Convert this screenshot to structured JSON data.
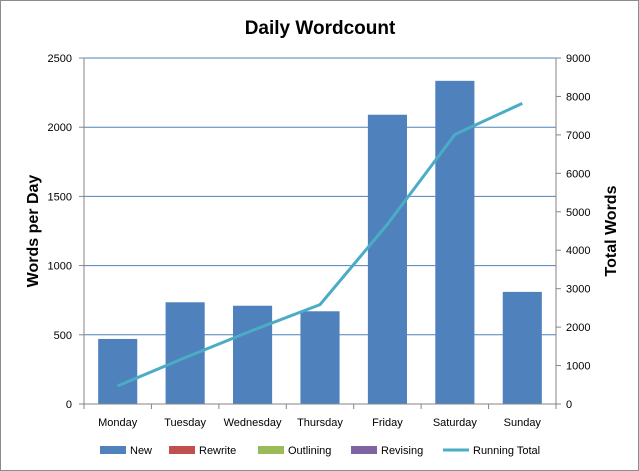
{
  "chart_data": {
    "type": "bar",
    "title": "Daily Wordcount",
    "ylabel": "Words per Day",
    "y2label": "Total Words",
    "xlabel": "",
    "categories": [
      "Monday",
      "Tuesday",
      "Wednesday",
      "Thursday",
      "Friday",
      "Saturday",
      "Sunday"
    ],
    "ylim": [
      0,
      2500
    ],
    "yticks": [
      0,
      500,
      1000,
      1500,
      2000,
      2500
    ],
    "y2lim": [
      0,
      9000
    ],
    "y2ticks": [
      0,
      1000,
      2000,
      3000,
      4000,
      5000,
      6000,
      7000,
      8000,
      9000
    ],
    "grid": true,
    "legend_position": "bottom",
    "series": [
      {
        "name": "New",
        "type": "bar",
        "axis": "left",
        "color": "#4f81bd",
        "values": [
          470,
          735,
          710,
          670,
          2090,
          2335,
          810
        ]
      },
      {
        "name": "Rewrite",
        "type": "bar",
        "axis": "left",
        "color": "#c0504d",
        "values": [
          0,
          0,
          0,
          0,
          0,
          0,
          0
        ]
      },
      {
        "name": "Outlining",
        "type": "bar",
        "axis": "left",
        "color": "#9bbb59",
        "values": [
          0,
          0,
          0,
          0,
          0,
          0,
          0
        ]
      },
      {
        "name": "Revising",
        "type": "bar",
        "axis": "left",
        "color": "#8064a2",
        "values": [
          0,
          0,
          0,
          0,
          0,
          0,
          0
        ]
      },
      {
        "name": "Running Total",
        "type": "line",
        "axis": "right",
        "color": "#4bacc6",
        "values": [
          470,
          1205,
          1915,
          2585,
          4675,
          7010,
          7820
        ]
      }
    ],
    "colors": {
      "grid": "#4f81bd",
      "axis": "#868686",
      "frame": "#8c8c8c"
    }
  }
}
